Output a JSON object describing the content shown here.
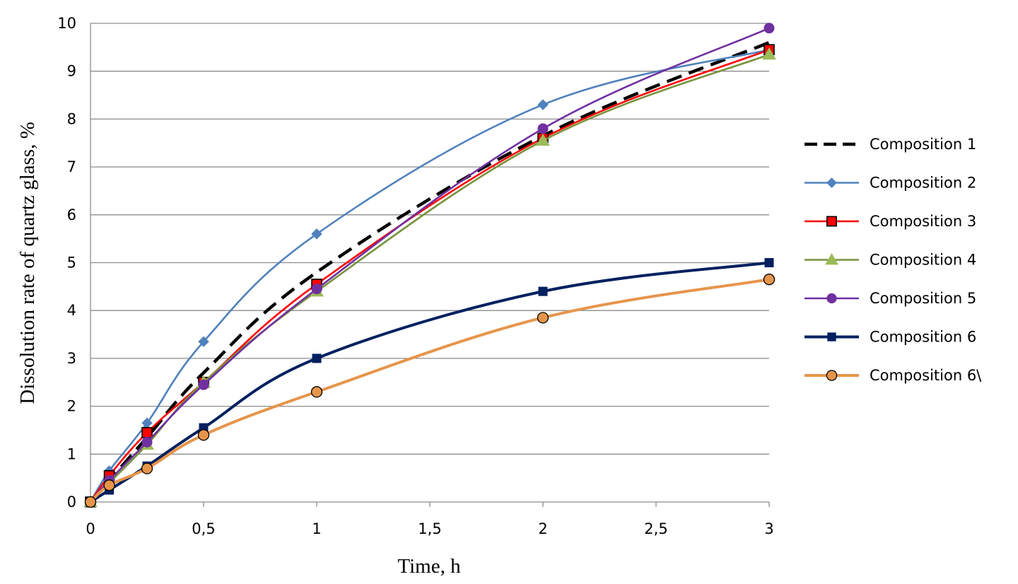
{
  "chart_data": {
    "type": "line",
    "title": "",
    "xlabel": "Time,  h",
    "ylabel": "Dissolution  rate of quartz glass,  %",
    "xlim": [
      0,
      3
    ],
    "ylim": [
      0,
      10
    ],
    "x_ticks": [
      {
        "value": 0,
        "label": "0"
      },
      {
        "value": 0.5,
        "label": "0,5"
      },
      {
        "value": 1,
        "label": "1"
      },
      {
        "value": 1.5,
        "label": "1,5"
      },
      {
        "value": 2,
        "label": "2"
      },
      {
        "value": 2.5,
        "label": "2,5"
      },
      {
        "value": 3,
        "label": "3"
      }
    ],
    "y_ticks": [
      {
        "value": 0,
        "label": "0"
      },
      {
        "value": 1,
        "label": "1"
      },
      {
        "value": 2,
        "label": "2"
      },
      {
        "value": 3,
        "label": "3"
      },
      {
        "value": 4,
        "label": "4"
      },
      {
        "value": 5,
        "label": "5"
      },
      {
        "value": 6,
        "label": "6"
      },
      {
        "value": 7,
        "label": "7"
      },
      {
        "value": 8,
        "label": "8"
      },
      {
        "value": 9,
        "label": "9"
      },
      {
        "value": 10,
        "label": "10"
      }
    ],
    "grid": "horizontal",
    "legend_position": "right",
    "x": [
      0,
      0.083,
      0.25,
      0.5,
      1,
      2,
      3
    ],
    "series": [
      {
        "name": "Composition 1",
        "color": "#000000",
        "style": "dashed",
        "marker": "none",
        "values": [
          0,
          0.45,
          1.35,
          2.7,
          4.8,
          7.65,
          9.6
        ]
      },
      {
        "name": "Composition 2",
        "color": "#4f81bd",
        "style": "solid",
        "marker": "diamond",
        "values": [
          0,
          0.65,
          1.65,
          3.35,
          5.6,
          8.3,
          9.45
        ]
      },
      {
        "name": "Composition 3",
        "color": "#ff0000",
        "style": "solid",
        "marker": "square-open",
        "values": [
          0,
          0.55,
          1.45,
          2.5,
          4.55,
          7.6,
          9.45
        ]
      },
      {
        "name": "Composition 4",
        "color": "#77933c",
        "style": "solid",
        "marker": "triangle",
        "values": [
          0,
          0.4,
          1.2,
          2.5,
          4.4,
          7.55,
          9.35
        ]
      },
      {
        "name": "Composition 5",
        "color": "#7030a0",
        "style": "solid",
        "marker": "circle",
        "values": [
          0,
          0.45,
          1.25,
          2.45,
          4.45,
          7.8,
          9.9
        ]
      },
      {
        "name": "Composition 6",
        "color": "#002060",
        "style": "solid",
        "marker": "square",
        "values": [
          0,
          0.25,
          0.75,
          1.55,
          3.0,
          4.4,
          5.0
        ]
      },
      {
        "name": "Composition 6\\",
        "color": "#e6954b",
        "style": "solid",
        "marker": "circle-outlined",
        "values": [
          0,
          0.35,
          0.7,
          1.4,
          2.3,
          3.85,
          4.65
        ]
      }
    ]
  }
}
